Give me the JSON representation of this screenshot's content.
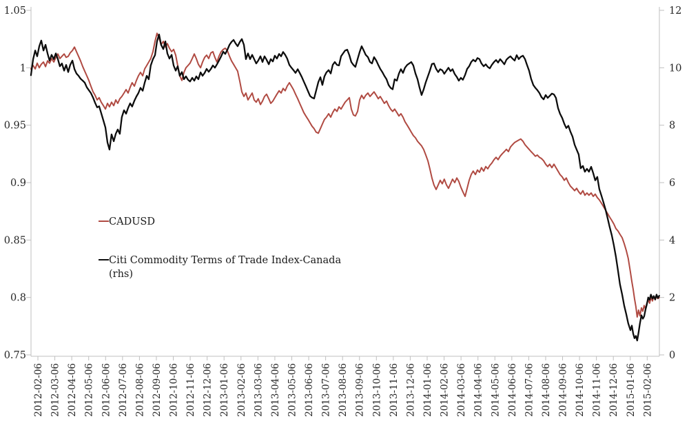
{
  "chart_data": {
    "type": "line",
    "title": "",
    "x_axis": {
      "unit": "months since 2012-02-06",
      "tick_labels": [
        "2012-02-06",
        "2012-03-06",
        "2012-04-06",
        "2012-05-06",
        "2012-06-06",
        "2012-07-06",
        "2012-08-06",
        "2012-09-06",
        "2012-10-06",
        "2012-11-06",
        "2012-12-06",
        "2013-01-06",
        "2013-02-06",
        "2013-03-06",
        "2013-04-06",
        "2013-05-06",
        "2013-06-06",
        "2013-07-06",
        "2013-08-06",
        "2013-09-06",
        "2013-10-06",
        "2013-11-06",
        "2013-12-06",
        "2014-01-06",
        "2014-02-06",
        "2014-03-06",
        "2014-04-06",
        "2014-05-06",
        "2014-06-06",
        "2014-07-06",
        "2014-08-06",
        "2014-09-06",
        "2014-10-06",
        "2014-11-06",
        "2014-12-06",
        "2015-01-06",
        "2015-02-06"
      ]
    },
    "left_axis": {
      "min": 0.75,
      "max": 1.05,
      "tick_labels": [
        "1.05",
        "1",
        "0.95",
        "0.9",
        "0.85",
        "0.8",
        "0.75"
      ],
      "tick_values": [
        1.05,
        1,
        0.95,
        0.9,
        0.85,
        0.8,
        0.75
      ]
    },
    "right_axis": {
      "min": 0,
      "max": 12,
      "tick_labels": [
        "12",
        "10",
        "8",
        "6",
        "4",
        "2",
        "0"
      ],
      "tick_values": [
        12,
        10,
        8,
        6,
        4,
        2,
        0
      ]
    },
    "grid": false,
    "x_months": [
      -0.41,
      -0.28,
      -0.16,
      -0.04,
      0.08,
      0.2,
      0.33,
      0.45,
      0.57,
      0.69,
      0.81,
      0.94,
      1.06,
      1.18,
      1.3,
      1.42,
      1.55,
      1.67,
      1.79,
      1.91,
      2.04,
      2.16,
      2.28,
      2.4,
      2.52,
      2.65,
      2.77,
      2.89,
      3.01,
      3.13,
      3.26,
      3.38,
      3.5,
      3.62,
      3.74,
      3.87,
      3.99,
      4.11,
      4.23,
      4.35,
      4.48,
      4.6,
      4.72,
      4.84,
      4.96,
      5.09,
      5.21,
      5.33,
      5.45,
      5.57,
      5.7,
      5.82,
      5.94,
      6.06,
      6.19,
      6.31,
      6.43,
      6.55,
      6.67,
      6.8,
      6.92,
      7.04,
      7.16,
      7.28,
      7.41,
      7.53,
      7.65,
      7.77,
      7.9,
      8.02,
      8.14,
      8.26,
      8.38,
      8.51,
      8.63,
      8.75,
      8.87,
      8.99,
      9.12,
      9.24,
      9.36,
      9.48,
      9.61,
      9.73,
      9.85,
      9.97,
      10.09,
      10.22,
      10.34,
      10.46,
      10.58,
      10.7,
      10.83,
      10.95,
      11.07,
      11.19,
      11.32,
      11.44,
      11.56,
      11.68,
      11.8,
      11.93,
      12.05,
      12.17,
      12.29,
      12.41,
      12.54,
      12.66,
      12.78,
      12.9,
      13.02,
      13.15,
      13.27,
      13.39,
      13.51,
      13.64,
      13.76,
      13.88,
      14.0,
      14.12,
      14.25,
      14.37,
      14.49,
      14.61,
      14.73,
      14.86,
      14.98,
      15.1,
      15.22,
      15.35,
      15.47,
      15.59,
      15.71,
      15.83,
      15.96,
      16.08,
      16.2,
      16.32,
      16.44,
      16.57,
      16.69,
      16.81,
      16.93,
      17.05,
      17.18,
      17.3,
      17.42,
      17.54,
      17.67,
      17.79,
      17.91,
      18.03,
      18.15,
      18.28,
      18.4,
      18.52,
      18.64,
      18.76,
      18.89,
      19.01,
      19.13,
      19.25,
      19.37,
      19.5,
      19.62,
      19.74,
      19.86,
      19.99,
      20.11,
      20.23,
      20.35,
      20.47,
      20.6,
      20.72,
      20.84,
      20.96,
      21.08,
      21.21,
      21.33,
      21.45,
      21.57,
      21.69,
      21.82,
      21.94,
      22.06,
      22.18,
      22.31,
      22.43,
      22.55,
      22.67,
      22.79,
      22.92,
      23.04,
      23.16,
      23.28,
      23.4,
      23.53,
      23.65,
      23.77,
      23.89,
      24.01,
      24.14,
      24.26,
      24.38,
      24.5,
      24.63,
      24.75,
      24.87,
      24.99,
      25.11,
      25.24,
      25.36,
      25.48,
      25.6,
      25.72,
      25.85,
      25.97,
      26.09,
      26.21,
      26.34,
      26.46,
      26.58,
      26.7,
      26.82,
      26.95,
      27.07,
      27.19,
      27.31,
      27.43,
      27.56,
      27.68,
      27.8,
      27.92,
      28.04,
      28.17,
      28.29,
      28.41,
      28.53,
      28.66,
      28.78,
      28.9,
      29.02,
      29.14,
      29.27,
      29.39,
      29.51,
      29.63,
      29.75,
      29.88,
      30.0,
      30.12,
      30.24,
      30.37,
      30.49,
      30.61,
      30.73,
      30.85,
      30.98,
      31.1,
      31.22,
      31.34,
      31.46,
      31.59,
      31.71,
      31.83,
      31.95,
      32.07,
      32.2,
      32.32,
      32.44,
      32.56,
      32.69,
      32.81,
      32.93,
      33.05,
      33.17,
      33.3,
      33.42,
      33.54,
      33.66,
      33.78,
      33.91,
      34.03,
      34.15,
      34.27,
      34.39,
      34.52,
      34.64,
      34.76,
      34.88,
      35.01,
      35.09,
      35.17,
      35.25,
      35.33,
      35.41,
      35.49,
      35.57,
      35.66,
      35.74,
      35.82,
      35.9,
      35.98,
      36.06,
      36.14,
      36.22,
      36.31,
      36.39,
      36.47,
      36.55,
      36.63,
      36.71
    ],
    "series": [
      {
        "name": "CADUSD",
        "axis": "left",
        "color": "#b04a42",
        "values": [
          0.999,
          1.002,
          0.999,
          1.004,
          1.0,
          1.003,
          1.005,
          1.001,
          1.006,
          1.004,
          1.008,
          1.005,
          1.009,
          1.012,
          1.008,
          1.01,
          1.012,
          1.009,
          1.01,
          1.013,
          1.015,
          1.018,
          1.014,
          1.01,
          1.006,
          1.001,
          0.997,
          0.993,
          0.989,
          0.984,
          0.979,
          0.976,
          0.972,
          0.974,
          0.97,
          0.967,
          0.964,
          0.969,
          0.966,
          0.97,
          0.967,
          0.972,
          0.969,
          0.973,
          0.975,
          0.978,
          0.981,
          0.978,
          0.983,
          0.987,
          0.984,
          0.989,
          0.993,
          0.996,
          0.993,
          0.999,
          1.002,
          1.005,
          1.008,
          1.014,
          1.023,
          1.03,
          1.026,
          1.02,
          1.023,
          1.018,
          1.021,
          1.017,
          1.014,
          1.016,
          1.011,
          1.002,
          0.993,
          0.989,
          0.996,
          1.0,
          1.002,
          1.004,
          1.008,
          1.012,
          1.008,
          1.003,
          1.0,
          1.005,
          1.009,
          1.011,
          1.008,
          1.013,
          1.014,
          1.009,
          1.005,
          1.01,
          1.014,
          1.016,
          1.017,
          1.015,
          1.01,
          1.006,
          1.003,
          1.0,
          0.997,
          0.988,
          0.979,
          0.975,
          0.978,
          0.972,
          0.975,
          0.978,
          0.972,
          0.97,
          0.973,
          0.968,
          0.971,
          0.975,
          0.977,
          0.973,
          0.969,
          0.971,
          0.974,
          0.977,
          0.98,
          0.978,
          0.982,
          0.98,
          0.984,
          0.987,
          0.984,
          0.981,
          0.977,
          0.973,
          0.969,
          0.965,
          0.961,
          0.958,
          0.955,
          0.952,
          0.949,
          0.947,
          0.944,
          0.943,
          0.947,
          0.951,
          0.955,
          0.957,
          0.96,
          0.957,
          0.961,
          0.964,
          0.962,
          0.966,
          0.964,
          0.967,
          0.97,
          0.972,
          0.974,
          0.964,
          0.959,
          0.958,
          0.962,
          0.972,
          0.976,
          0.973,
          0.976,
          0.978,
          0.975,
          0.977,
          0.979,
          0.976,
          0.973,
          0.975,
          0.972,
          0.969,
          0.971,
          0.967,
          0.964,
          0.962,
          0.964,
          0.961,
          0.958,
          0.96,
          0.957,
          0.953,
          0.95,
          0.947,
          0.944,
          0.941,
          0.939,
          0.936,
          0.934,
          0.932,
          0.929,
          0.924,
          0.919,
          0.912,
          0.904,
          0.898,
          0.894,
          0.898,
          0.902,
          0.899,
          0.903,
          0.898,
          0.895,
          0.899,
          0.903,
          0.9,
          0.904,
          0.901,
          0.896,
          0.892,
          0.888,
          0.895,
          0.902,
          0.907,
          0.91,
          0.907,
          0.911,
          0.909,
          0.913,
          0.91,
          0.914,
          0.912,
          0.915,
          0.917,
          0.92,
          0.922,
          0.92,
          0.923,
          0.925,
          0.927,
          0.929,
          0.927,
          0.931,
          0.933,
          0.935,
          0.936,
          0.937,
          0.938,
          0.936,
          0.933,
          0.931,
          0.929,
          0.927,
          0.925,
          0.923,
          0.924,
          0.922,
          0.921,
          0.919,
          0.916,
          0.914,
          0.916,
          0.913,
          0.916,
          0.913,
          0.91,
          0.907,
          0.905,
          0.902,
          0.904,
          0.9,
          0.897,
          0.895,
          0.893,
          0.895,
          0.892,
          0.89,
          0.893,
          0.889,
          0.891,
          0.889,
          0.891,
          0.888,
          0.89,
          0.887,
          0.885,
          0.882,
          0.879,
          0.876,
          0.873,
          0.87,
          0.867,
          0.864,
          0.86,
          0.858,
          0.855,
          0.852,
          0.847,
          0.841,
          0.834,
          0.822,
          0.814,
          0.807,
          0.799,
          0.792,
          0.783,
          0.789,
          0.784,
          0.791,
          0.788,
          0.793,
          0.79,
          0.795,
          0.798,
          0.795,
          0.8,
          0.797,
          0.801,
          0.798,
          0.801,
          0.799,
          0.8
        ]
      },
      {
        "name": "Citi Commodity Terms of Trade Index-Canada (rhs)",
        "axis": "right",
        "color": "#0d0d0d",
        "values": [
          9.74,
          10.3,
          10.6,
          10.4,
          10.75,
          10.95,
          10.6,
          10.8,
          10.5,
          10.25,
          10.45,
          10.3,
          10.5,
          10.3,
          10.05,
          10.15,
          9.9,
          10.1,
          9.85,
          10.1,
          10.25,
          9.95,
          9.8,
          9.72,
          9.62,
          9.55,
          9.48,
          9.32,
          9.22,
          9.12,
          8.96,
          8.78,
          8.62,
          8.66,
          8.42,
          8.16,
          7.92,
          7.4,
          7.15,
          7.68,
          7.44,
          7.7,
          7.85,
          7.7,
          8.28,
          8.52,
          8.4,
          8.6,
          8.76,
          8.65,
          8.85,
          9.0,
          9.12,
          9.3,
          9.2,
          9.48,
          9.72,
          9.6,
          10.08,
          10.3,
          10.44,
          10.92,
          11.16,
          10.8,
          10.65,
          10.92,
          10.5,
          10.32,
          10.45,
          10.08,
          9.9,
          10.05,
          9.72,
          9.85,
          9.6,
          9.7,
          9.58,
          9.52,
          9.65,
          9.55,
          9.7,
          9.6,
          9.84,
          9.72,
          9.82,
          9.96,
          9.86,
          9.96,
          10.08,
          10.0,
          10.12,
          10.25,
          10.4,
          10.56,
          10.48,
          10.62,
          10.8,
          10.9,
          10.97,
          10.85,
          10.75,
          10.9,
          11.0,
          10.8,
          10.3,
          10.5,
          10.3,
          10.45,
          10.3,
          10.15,
          10.25,
          10.4,
          10.2,
          10.4,
          10.28,
          10.12,
          10.3,
          10.22,
          10.42,
          10.32,
          10.48,
          10.4,
          10.55,
          10.45,
          10.32,
          10.1,
          10.0,
          9.92,
          9.82,
          9.95,
          9.82,
          9.68,
          9.52,
          9.36,
          9.18,
          9.02,
          8.96,
          8.93,
          9.2,
          9.5,
          9.67,
          9.4,
          9.7,
          9.84,
          9.92,
          9.8,
          10.1,
          10.2,
          10.1,
          10.08,
          10.4,
          10.5,
          10.6,
          10.63,
          10.44,
          10.2,
          10.1,
          10.03,
          10.3,
          10.55,
          10.75,
          10.6,
          10.45,
          10.37,
          10.2,
          10.15,
          10.37,
          10.25,
          10.1,
          9.96,
          9.85,
          9.72,
          9.6,
          9.4,
          9.3,
          9.25,
          9.6,
          9.55,
          9.8,
          9.95,
          9.82,
          10.0,
          10.1,
          10.15,
          10.2,
          10.08,
          9.8,
          9.6,
          9.31,
          9.05,
          9.24,
          9.5,
          9.7,
          9.9,
          10.13,
          10.15,
          9.96,
          9.85,
          9.95,
          9.91,
          9.79,
          9.9,
          10.0,
          9.88,
          9.95,
          9.78,
          9.68,
          9.55,
          9.65,
          9.58,
          9.75,
          9.96,
          10.05,
          10.2,
          10.28,
          10.22,
          10.34,
          10.3,
          10.15,
          10.05,
          10.12,
          10.03,
          9.98,
          10.1,
          10.2,
          10.27,
          10.18,
          10.3,
          10.22,
          10.12,
          10.28,
          10.35,
          10.4,
          10.32,
          10.25,
          10.44,
          10.3,
          10.38,
          10.42,
          10.3,
          10.1,
          9.9,
          9.62,
          9.4,
          9.3,
          9.22,
          9.12,
          8.98,
          8.9,
          9.05,
          8.95,
          9.02,
          9.1,
          9.07,
          8.95,
          8.6,
          8.4,
          8.25,
          8.05,
          7.9,
          7.98,
          7.78,
          7.6,
          7.32,
          7.15,
          6.98,
          6.5,
          6.58,
          6.38,
          6.48,
          6.38,
          6.55,
          6.33,
          6.08,
          6.2,
          5.78,
          5.54,
          5.3,
          5.06,
          4.76,
          4.46,
          4.16,
          3.82,
          3.42,
          2.96,
          2.46,
          2.1,
          1.72,
          1.42,
          1.1,
          0.86,
          1.02,
          0.74,
          0.58,
          0.66,
          0.5,
          0.78,
          1.1,
          1.38,
          1.26,
          1.34,
          1.58,
          1.76,
          2.0,
          1.92,
          2.1,
          1.96,
          2.05,
          1.93,
          2.1,
          1.98,
          2.06
        ]
      }
    ]
  },
  "legend": {
    "items": [
      {
        "label": "CADUSD",
        "color": "#b04a42",
        "lines": [
          "CADUSD"
        ]
      },
      {
        "label": "Citi Commodity Terms of Trade Index-Canada (rhs)",
        "color": "#0d0d0d",
        "lines": [
          "Citi Commodity Terms of Trade Index-Canada",
          "(rhs)"
        ]
      }
    ]
  },
  "style_colors": {
    "axis_line": "#bfbfbf",
    "label_text": "#262626",
    "background": "#ffffff"
  }
}
